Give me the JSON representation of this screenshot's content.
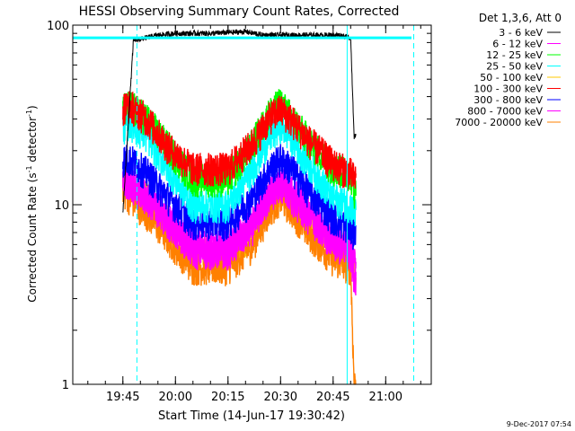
{
  "chart_data": {
    "type": "line",
    "title": "HESSI Observing Summary Count Rates, Corrected",
    "xlabel": "Start Time (14-Jun-17 19:30:42)",
    "ylabel_main": "Corrected Count Rate (s",
    "ylabel_sup1": "-1",
    "ylabel_mid": " detector",
    "ylabel_sup2": "-1",
    "ylabel_end": ")",
    "yscale": "log",
    "ylim": [
      1,
      100
    ],
    "xlim": [
      "19:30:42",
      "21:13:00"
    ],
    "x_ticks": [
      "19:45",
      "20:00",
      "20:15",
      "20:30",
      "20:45",
      "21:00"
    ],
    "y_ticks": [
      "1",
      "10",
      "100"
    ],
    "footer_date": "9-Dec-2017 07:54",
    "legend": {
      "position": "top-right",
      "title": "Det 1,3,6, Att 0"
    },
    "reference_line": {
      "value": 85,
      "color": "#00ffff"
    },
    "vertical_lines": [
      {
        "time": "19:30:42",
        "style": "solid",
        "color": "#00ffff"
      },
      {
        "time": "19:49:00",
        "style": "dashed",
        "color": "#00ffff"
      },
      {
        "time": "20:49:00",
        "style": "solid",
        "color": "#00ffff"
      },
      {
        "time": "21:08:00",
        "style": "dashed",
        "color": "#00ffff"
      }
    ],
    "data_interval": [
      "19:45:00",
      "20:51:30"
    ],
    "series": [
      {
        "name": "3 - 6 keV",
        "color": "#000000",
        "x": [
          "19:45",
          "19:48",
          "19:55",
          "20:00",
          "20:10",
          "20:20",
          "20:25",
          "20:30",
          "20:40",
          "20:47",
          "20:49",
          "20:50",
          "20:51"
        ],
        "values": [
          9,
          82,
          88,
          90,
          90,
          92,
          88,
          88,
          88,
          88,
          86,
          85,
          24
        ]
      },
      {
        "name": "6 - 12 keV",
        "color": "#ff00ff",
        "x": [
          "19:45",
          "19:47",
          "19:52",
          "19:58",
          "20:05",
          "20:15",
          "20:22",
          "20:27",
          "20:30",
          "20:33",
          "20:38",
          "20:45",
          "20:50",
          "20:51"
        ],
        "values": [
          15,
          13,
          11,
          8.5,
          5.5,
          5.5,
          7.5,
          12,
          13.5,
          12,
          9.5,
          6,
          5.5,
          4
        ]
      },
      {
        "name": "12 - 25 keV",
        "color": "#00ff00",
        "x": [
          "19:45",
          "19:47",
          "19:52",
          "19:58",
          "20:05",
          "20:15",
          "20:22",
          "20:27",
          "20:30",
          "20:33",
          "20:38",
          "20:45",
          "20:50",
          "20:51"
        ],
        "values": [
          34,
          36,
          30,
          21,
          14,
          14,
          22,
          33,
          37,
          31,
          23,
          16,
          15,
          12
        ]
      },
      {
        "name": "25 - 50 keV",
        "color": "#00ffff",
        "x": [
          "19:45",
          "19:47",
          "19:52",
          "19:58",
          "20:05",
          "20:15",
          "20:22",
          "20:27",
          "20:30",
          "20:33",
          "20:38",
          "20:45",
          "20:50",
          "20:51"
        ],
        "values": [
          27,
          29,
          24,
          16,
          10,
          10,
          16,
          24,
          28,
          24,
          17,
          11,
          10,
          9
        ]
      },
      {
        "name": "50 - 100 keV",
        "color": "#ffc800",
        "x": [
          "19:45",
          "19:47",
          "19:52",
          "19:58",
          "20:05",
          "20:15",
          "20:22",
          "20:27",
          "20:30",
          "20:33",
          "20:38",
          "20:45",
          "20:50",
          "20:51"
        ],
        "values": [
          14,
          13,
          11,
          8,
          5.5,
          5.5,
          7,
          11,
          12,
          10.5,
          8,
          6,
          5.5,
          4.5
        ]
      },
      {
        "name": "100 - 300 keV",
        "color": "#ff0000",
        "x": [
          "19:45",
          "19:47",
          "19:52",
          "19:58",
          "20:05",
          "20:15",
          "20:22",
          "20:27",
          "20:30",
          "20:33",
          "20:38",
          "20:45",
          "20:50",
          "20:51"
        ],
        "values": [
          35,
          36,
          30,
          21,
          16,
          16,
          22,
          31,
          34,
          30,
          23,
          17,
          15,
          14
        ]
      },
      {
        "name": "300 - 800 keV",
        "color": "#0000ff",
        "x": [
          "19:45",
          "19:47",
          "19:52",
          "19:58",
          "20:05",
          "20:15",
          "20:22",
          "20:27",
          "20:30",
          "20:33",
          "20:38",
          "20:45",
          "20:50",
          "20:51"
        ],
        "values": [
          18,
          18,
          15,
          11,
          8,
          8,
          11,
          16,
          18,
          16,
          12,
          8.5,
          7.5,
          7
        ]
      },
      {
        "name": "800 - 7000 keV",
        "color": "#ff00ff",
        "x": [
          "19:45",
          "19:47",
          "19:52",
          "19:58",
          "20:05",
          "20:15",
          "20:22",
          "20:27",
          "20:30",
          "20:33",
          "20:38",
          "20:45",
          "20:50",
          "20:51"
        ],
        "values": [
          14,
          13.5,
          11,
          8,
          6,
          6,
          8,
          11.5,
          13,
          11,
          8.5,
          6.5,
          6,
          5
        ]
      },
      {
        "name": "7000 - 20000 keV",
        "color": "#ff8000",
        "x": [
          "19:45",
          "19:47",
          "19:52",
          "19:58",
          "20:05",
          "20:15",
          "20:22",
          "20:27",
          "20:30",
          "20:33",
          "20:38",
          "20:45",
          "20:50",
          "20:51"
        ],
        "values": [
          12,
          11,
          9,
          6.5,
          4.5,
          4.5,
          6,
          9.5,
          11,
          9.5,
          7,
          5,
          4.5,
          1
        ]
      }
    ]
  }
}
